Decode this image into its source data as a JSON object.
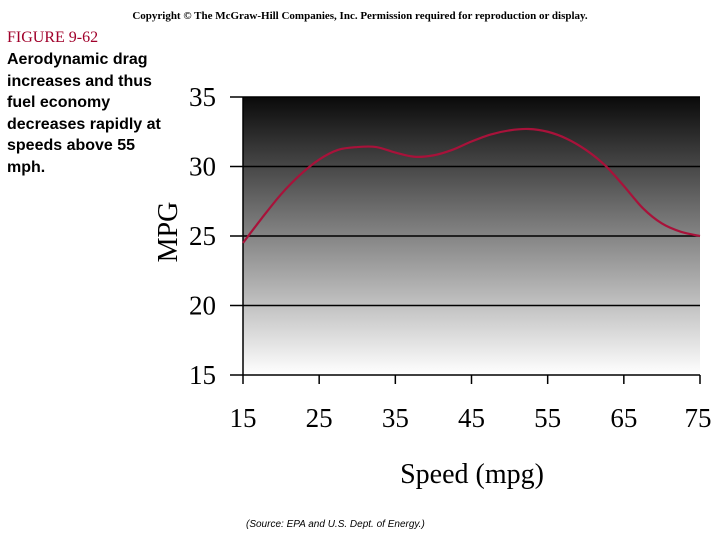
{
  "header": {
    "copyright": "Copyright © The McGraw-Hill Companies, Inc. Permission required for reproduction or display."
  },
  "figure": {
    "label": "FIGURE 9-62",
    "caption": "Aerodynamic drag increases and thus fuel economy decreases rapidly at speeds above 55 mph.",
    "source": "(Source: EPA and U.S. Dept. of Energy.)"
  },
  "colors": {
    "curve": "#a8123a",
    "label": "#a0002a",
    "gradient_top": "#0a0a0a",
    "gradient_bottom": "#ffffff"
  },
  "chart_data": {
    "type": "line",
    "title": "",
    "xlabel": "Speed (mpg)",
    "ylabel": "MPG",
    "xlim": [
      15,
      75
    ],
    "ylim": [
      15,
      35
    ],
    "xticks": [
      15,
      25,
      35,
      45,
      55,
      65,
      75
    ],
    "yticks": [
      15,
      20,
      25,
      30,
      35
    ],
    "grid": true,
    "series": [
      {
        "x": [
          15,
          17.5,
          20,
          22.5,
          25,
          27.5,
          30,
          32.5,
          35,
          37.5,
          40,
          42.5,
          45,
          47.5,
          50,
          52.5,
          55,
          57.5,
          60,
          62.5,
          65,
          67.5,
          70,
          72.5,
          75
        ],
        "values": [
          24.5,
          26.3,
          28.0,
          29.4,
          30.5,
          31.2,
          31.4,
          31.4,
          31.0,
          30.7,
          30.8,
          31.2,
          31.8,
          32.3,
          32.6,
          32.7,
          32.5,
          32.0,
          31.2,
          30.1,
          28.6,
          27.0,
          25.9,
          25.3,
          25.0
        ]
      }
    ]
  }
}
